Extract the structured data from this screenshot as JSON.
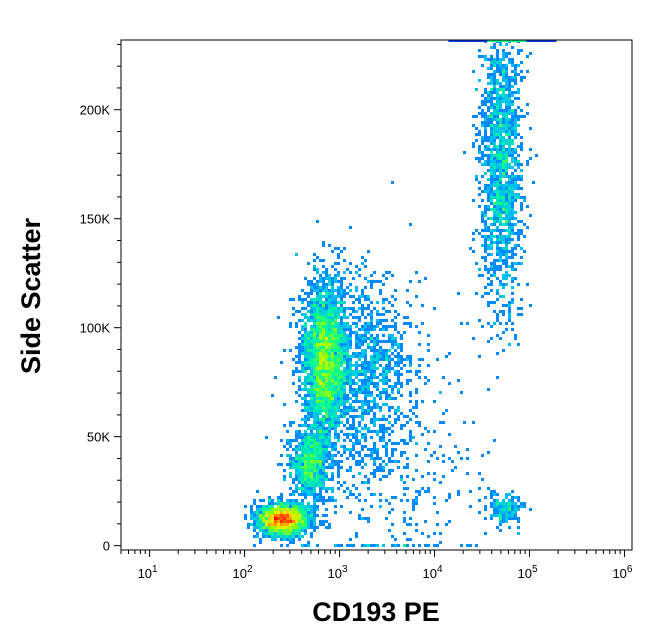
{
  "chart_data": {
    "type": "scatter",
    "subtype": "flow-cytometry-density-dot-plot",
    "title": "",
    "xlabel": "CD193 PE",
    "ylabel": "Side Scatter",
    "x_scale": "log10",
    "y_scale": "linear",
    "xlim": [
      5,
      1200000
    ],
    "ylim": [
      -2000,
      232000
    ],
    "x_ticks": [
      {
        "value": 10,
        "base": "10",
        "exp": "1"
      },
      {
        "value": 100,
        "base": "10",
        "exp": "2"
      },
      {
        "value": 1000,
        "base": "10",
        "exp": "3"
      },
      {
        "value": 10000,
        "base": "10",
        "exp": "4"
      },
      {
        "value": 100000,
        "base": "10",
        "exp": "5"
      },
      {
        "value": 1000000,
        "base": "10",
        "exp": "6"
      }
    ],
    "y_ticks": [
      {
        "value": 0,
        "label": "0"
      },
      {
        "value": 50000,
        "label": "50K"
      },
      {
        "value": 100000,
        "label": "100K"
      },
      {
        "value": 150000,
        "label": "150K"
      },
      {
        "value": 200000,
        "label": "200K"
      }
    ],
    "grid": false,
    "legend": "none",
    "colormap": [
      "#0000ff",
      "#00b4ff",
      "#00ff96",
      "#a0ff00",
      "#ffe600",
      "#ff6400",
      "#ff0000"
    ],
    "populations": [
      {
        "x_center": 250,
        "x_log_sd": 0.13,
        "y_center": 12000,
        "y_sd": 3500,
        "count": 2200,
        "peak_density": 1.0
      },
      {
        "x_center": 700,
        "x_log_sd": 0.11,
        "y_center": 85000,
        "y_sd": 17000,
        "count": 3000,
        "peak_density": 0.6
      },
      {
        "x_center": 500,
        "x_log_sd": 0.1,
        "y_center": 38000,
        "y_sd": 8000,
        "count": 900,
        "peak_density": 0.35
      },
      {
        "x_center": 1800,
        "x_log_sd": 0.3,
        "y_center": 80000,
        "y_sd": 22000,
        "count": 1300,
        "peak_density": 0.15
      },
      {
        "x_center": 50000,
        "x_log_sd": 0.11,
        "y_center": 175000,
        "y_sd": 33000,
        "count": 1700,
        "peak_density": 0.12
      },
      {
        "x_center": 55000,
        "x_log_sd": 0.1,
        "y_center": 17000,
        "y_sd": 3500,
        "count": 170,
        "peak_density": 0.1
      },
      {
        "x_center": 3000,
        "x_log_sd": 0.55,
        "y_center": 30000,
        "y_sd": 25000,
        "count": 350,
        "peak_density": 0.05
      }
    ]
  }
}
